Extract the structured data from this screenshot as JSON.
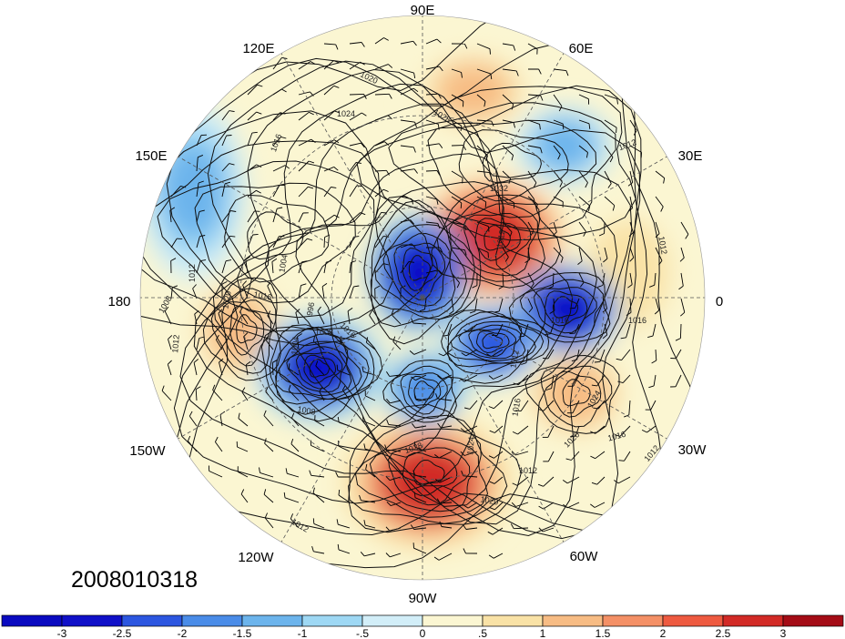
{
  "datetime_label": "2008010318",
  "chart_data": {
    "type": "contour",
    "projection": "north polar stereographic",
    "shading": {
      "levels": [
        -3,
        -2.5,
        -2,
        -1.5,
        -1,
        -0.5,
        0,
        0.5,
        1,
        1.5,
        2,
        2.5,
        3
      ],
      "tick_labels": [
        "-3",
        "-2.5",
        "-2",
        "-1.5",
        "-1",
        "-.5",
        "0",
        ".5",
        "1",
        "1.5",
        "2",
        "2.5",
        "3"
      ],
      "colors": [
        "#1010c8",
        "#2c56e0",
        "#4a8ce8",
        "#6cb4ec",
        "#9ed8f4",
        "#d2eef8",
        "#fbf6d2",
        "#f9e2a6",
        "#f7bc84",
        "#f49066",
        "#ee5a40",
        "#d22a26",
        "#a40c16"
      ]
    },
    "contour_labels": [
      {
        "value": "1020"
      },
      {
        "value": "1024"
      },
      {
        "value": "1028"
      },
      {
        "value": "1016"
      },
      {
        "value": "1012"
      },
      {
        "value": "1012"
      },
      {
        "value": "1032"
      },
      {
        "value": "1012"
      },
      {
        "value": "1016"
      },
      {
        "value": "1012"
      },
      {
        "value": "1008"
      },
      {
        "value": "1012"
      },
      {
        "value": "1020"
      },
      {
        "value": "1016"
      },
      {
        "value": "1004"
      },
      {
        "value": "996"
      },
      {
        "value": "1004"
      },
      {
        "value": "1008"
      },
      {
        "value": "1008"
      },
      {
        "value": "1012"
      },
      {
        "value": "1012"
      },
      {
        "value": "1016"
      },
      {
        "value": "1016"
      },
      {
        "value": "1020"
      },
      {
        "value": "1024"
      },
      {
        "value": "1016"
      },
      {
        "value": "1012"
      },
      {
        "value": "1028"
      },
      {
        "value": "1024"
      },
      {
        "value": "1020"
      },
      {
        "value": "1012"
      },
      {
        "value": "1016"
      }
    ],
    "longitude_labels": [
      {
        "text": "90E"
      },
      {
        "text": "60E"
      },
      {
        "text": "30E"
      },
      {
        "text": "0"
      },
      {
        "text": "30W"
      },
      {
        "text": "60W"
      },
      {
        "text": "90W"
      },
      {
        "text": "120W"
      },
      {
        "text": "150W"
      },
      {
        "text": "180"
      },
      {
        "text": "150E"
      },
      {
        "text": "120E"
      }
    ],
    "anomaly_centers": [
      {
        "kind": "positive",
        "strength": 2.9
      },
      {
        "kind": "positive",
        "strength": 2.8
      },
      {
        "kind": "positive",
        "strength": 1.2
      },
      {
        "kind": "positive",
        "strength": 1.3
      },
      {
        "kind": "positive",
        "strength": 0.9
      },
      {
        "kind": "positive",
        "strength": 1.0
      },
      {
        "kind": "negative",
        "strength": -3.0
      },
      {
        "kind": "negative",
        "strength": -2.9
      },
      {
        "kind": "negative",
        "strength": -2.7
      },
      {
        "kind": "negative",
        "strength": -2.2
      },
      {
        "kind": "negative",
        "strength": -1.8
      },
      {
        "kind": "negative",
        "strength": -1.3
      },
      {
        "kind": "negative",
        "strength": -1.1
      }
    ]
  }
}
